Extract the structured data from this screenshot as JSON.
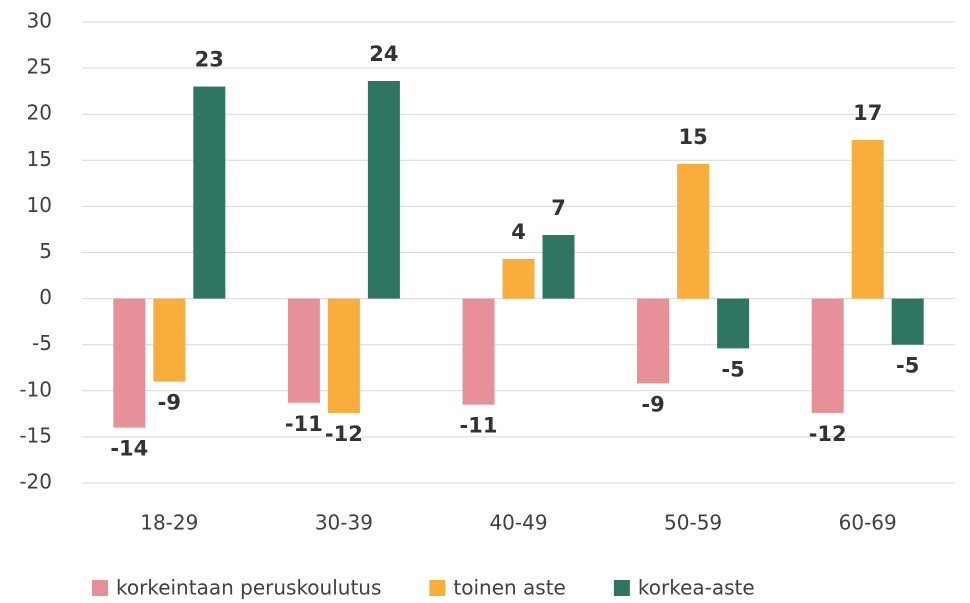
{
  "chart_data": {
    "type": "bar",
    "categories": [
      "18-29",
      "30-39",
      "40-49",
      "50-59",
      "60-69"
    ],
    "series": [
      {
        "name": "korkeintaan peruskoulutus",
        "color": "#e8909a",
        "values": [
          -14,
          -11.3,
          -11.5,
          -9.2,
          -12.4
        ],
        "value_labels": [
          "-14",
          "-11",
          "-11",
          "-9",
          "-12"
        ]
      },
      {
        "name": "toinen aste",
        "color": "#f9ae3b",
        "values": [
          -9,
          -12.4,
          4.3,
          14.6,
          17.2
        ],
        "value_labels": [
          "-9",
          "-12",
          "4",
          "15",
          "17"
        ]
      },
      {
        "name": "korkea-aste",
        "color": "#2e7562",
        "values": [
          23,
          23.6,
          6.9,
          -5.4,
          -5
        ],
        "value_labels": [
          "23",
          "24",
          "7",
          "-5",
          "-5"
        ]
      }
    ],
    "ylim": [
      -20,
      30
    ],
    "yticks": [
      -20,
      -15,
      -10,
      -5,
      0,
      5,
      10,
      15,
      20,
      25,
      30
    ],
    "grid": true,
    "legend": "bottom"
  }
}
